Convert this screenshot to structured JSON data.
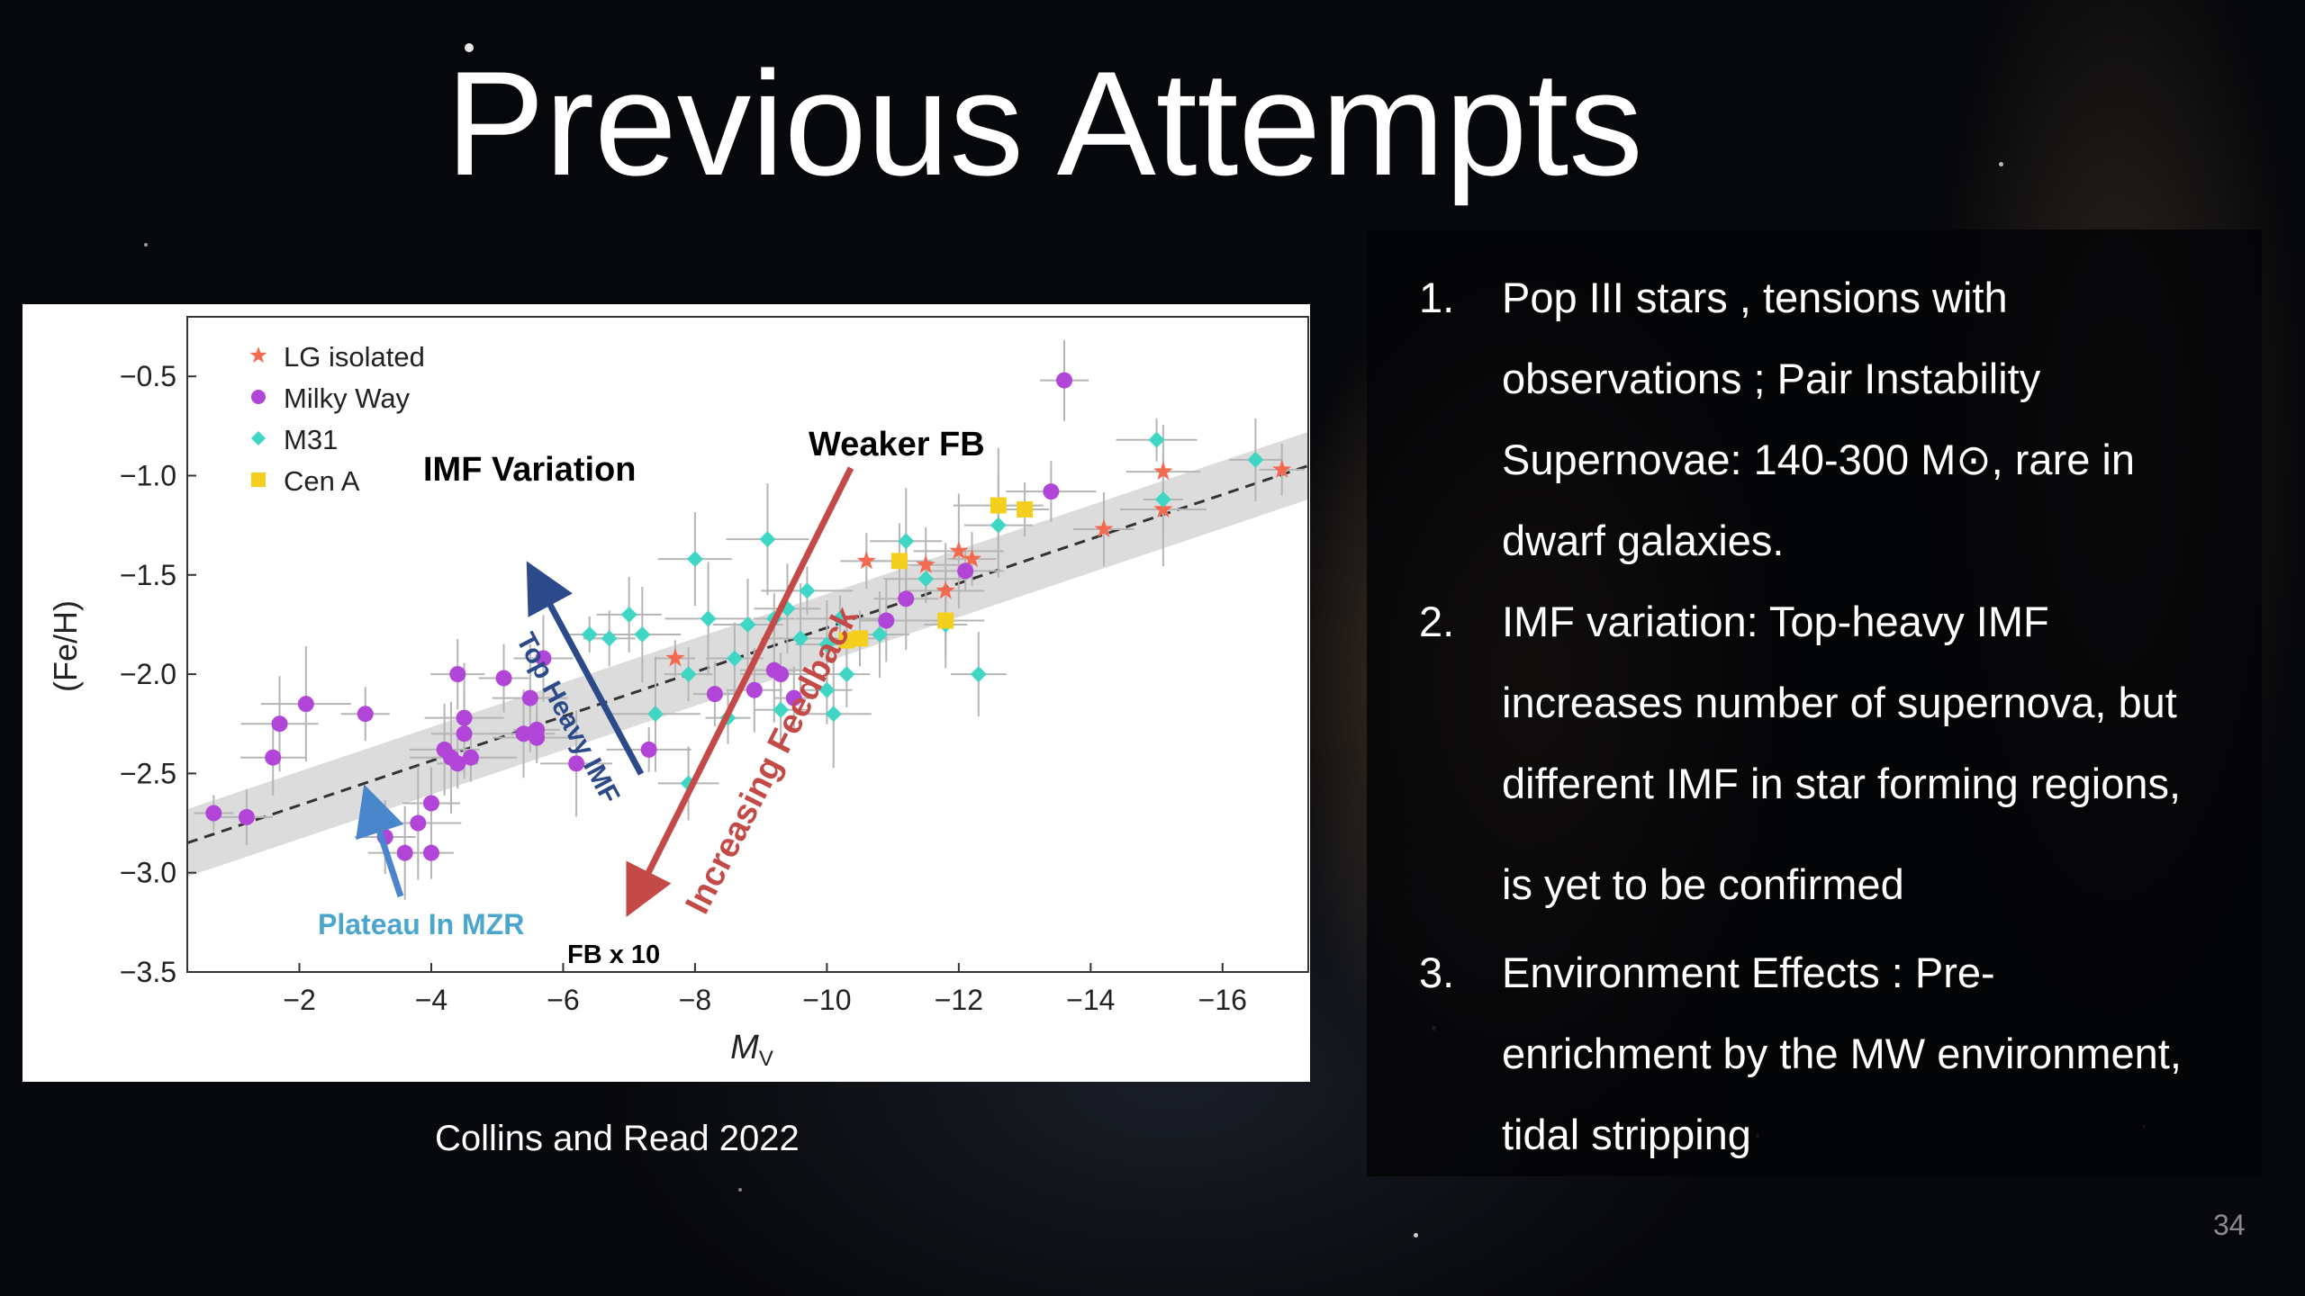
{
  "slide": {
    "title": "Previous Attempts",
    "caption": "Collins and Read 2022",
    "page_number": "34"
  },
  "list": [
    {
      "number": "1.",
      "lines": [
        "Pop III stars , tensions with",
        "observations ; Pair Instability",
        "Supernovae: 140-300 M⊙, rare in",
        "dwarf galaxies."
      ]
    },
    {
      "number": "2.",
      "lines": [
        "IMF variation: Top-heavy IMF",
        "increases number of supernova, but",
        "different IMF in star forming regions,",
        "is yet to be confirmed"
      ]
    },
    {
      "number": "3.",
      "lines": [
        "Environment Effects : Pre-",
        "enrichment by the MW environment,",
        "tidal stripping"
      ]
    }
  ],
  "chart_data": {
    "type": "scatter",
    "xlabel": "M",
    "xlabel_sub": "V",
    "ylabel": "(Fe/H)",
    "xlim": [
      -0.3,
      -17.3
    ],
    "ylim": [
      -3.5,
      -0.2
    ],
    "xticks": [
      -2,
      -4,
      -6,
      -8,
      -10,
      -12,
      -14,
      -16
    ],
    "xtick_labels": [
      "−2",
      "−4",
      "−6",
      "−8",
      "−10",
      "−12",
      "−14",
      "−16"
    ],
    "yticks": [
      -0.5,
      -1.0,
      -1.5,
      -2.0,
      -2.5,
      -3.0,
      -3.5
    ],
    "ytick_labels": [
      "−0.5",
      "−1.0",
      "−1.5",
      "−2.0",
      "−2.5",
      "−3.0",
      "−3.5"
    ],
    "legend_position": "top-left",
    "fit_line": {
      "x": [
        -0.3,
        -17.3
      ],
      "y": [
        -2.85,
        -0.95
      ],
      "band_halfwidth": 0.17
    },
    "series": [
      {
        "name": "LG isolated",
        "marker": "star",
        "color": "#f4694f",
        "points": [
          [
            -7.7,
            -1.92
          ],
          [
            -10.6,
            -1.43
          ],
          [
            -11.5,
            -1.45
          ],
          [
            -11.8,
            -1.58
          ],
          [
            -12.0,
            -1.38
          ],
          [
            -12.2,
            -1.42
          ],
          [
            -14.2,
            -1.27
          ],
          [
            -15.1,
            -0.98
          ],
          [
            -15.1,
            -1.17
          ],
          [
            -16.9,
            -0.97
          ]
        ]
      },
      {
        "name": "Milky Way",
        "marker": "circle",
        "color": "#b145d8",
        "points": [
          [
            -0.7,
            -2.7
          ],
          [
            -1.2,
            -2.72
          ],
          [
            -1.6,
            -2.42
          ],
          [
            -1.7,
            -2.25
          ],
          [
            -2.1,
            -2.15
          ],
          [
            -3.0,
            -2.2
          ],
          [
            -3.3,
            -2.82
          ],
          [
            -3.6,
            -2.9
          ],
          [
            -3.8,
            -2.75
          ],
          [
            -4.0,
            -2.9
          ],
          [
            -4.0,
            -2.65
          ],
          [
            -4.2,
            -2.38
          ],
          [
            -4.3,
            -2.42
          ],
          [
            -4.4,
            -2.45
          ],
          [
            -4.4,
            -2.0
          ],
          [
            -4.5,
            -2.3
          ],
          [
            -4.5,
            -2.22
          ],
          [
            -4.6,
            -2.42
          ],
          [
            -5.1,
            -2.02
          ],
          [
            -5.4,
            -2.3
          ],
          [
            -5.5,
            -2.12
          ],
          [
            -5.6,
            -2.32
          ],
          [
            -5.6,
            -2.28
          ],
          [
            -5.7,
            -1.92
          ],
          [
            -6.2,
            -2.45
          ],
          [
            -7.3,
            -2.38
          ],
          [
            -8.3,
            -2.1
          ],
          [
            -8.9,
            -2.08
          ],
          [
            -9.2,
            -1.98
          ],
          [
            -9.3,
            -2.0
          ],
          [
            -9.5,
            -2.12
          ],
          [
            -10.9,
            -1.73
          ],
          [
            -11.2,
            -1.62
          ],
          [
            -12.1,
            -1.48
          ],
          [
            -13.4,
            -1.08
          ],
          [
            -13.6,
            -0.52
          ]
        ]
      },
      {
        "name": "M31",
        "marker": "diamond",
        "color": "#3fd6c6",
        "points": [
          [
            -6.4,
            -1.8
          ],
          [
            -6.7,
            -1.82
          ],
          [
            -7.0,
            -1.7
          ],
          [
            -7.2,
            -1.8
          ],
          [
            -7.4,
            -2.2
          ],
          [
            -7.9,
            -2.0
          ],
          [
            -7.9,
            -2.55
          ],
          [
            -8.0,
            -1.42
          ],
          [
            -8.2,
            -1.72
          ],
          [
            -8.5,
            -2.22
          ],
          [
            -8.6,
            -1.92
          ],
          [
            -8.8,
            -1.75
          ],
          [
            -9.1,
            -1.32
          ],
          [
            -9.2,
            -1.72
          ],
          [
            -9.3,
            -2.18
          ],
          [
            -9.4,
            -1.67
          ],
          [
            -9.6,
            -1.82
          ],
          [
            -9.7,
            -1.58
          ],
          [
            -10.0,
            -2.08
          ],
          [
            -10.0,
            -1.85
          ],
          [
            -10.1,
            -2.2
          ],
          [
            -10.2,
            -1.72
          ],
          [
            -10.3,
            -2.0
          ],
          [
            -10.8,
            -1.8
          ],
          [
            -11.2,
            -1.33
          ],
          [
            -11.5,
            -1.52
          ],
          [
            -11.8,
            -1.75
          ],
          [
            -12.3,
            -2.0
          ],
          [
            -12.6,
            -1.25
          ],
          [
            -15.0,
            -0.82
          ],
          [
            -15.1,
            -1.12
          ],
          [
            -16.5,
            -0.92
          ]
        ]
      },
      {
        "name": "Cen A",
        "marker": "square",
        "color": "#f5cf1e",
        "points": [
          [
            -10.3,
            -1.83
          ],
          [
            -10.5,
            -1.82
          ],
          [
            -11.1,
            -1.43
          ],
          [
            -11.8,
            -1.73
          ],
          [
            -12.6,
            -1.15
          ],
          [
            -13.0,
            -1.17
          ]
        ]
      }
    ],
    "annotations": [
      {
        "text": "IMF Variation",
        "color": "#000000"
      },
      {
        "text": "Weaker FB",
        "color": "#000000"
      },
      {
        "text": "Top Heavy IMF",
        "color": "#2c4a8a"
      },
      {
        "text": "Increasing Feedback",
        "color": "#c44a48"
      },
      {
        "text": "Plateau In MZR",
        "color": "#4aa6cc"
      },
      {
        "text": "FB x 10",
        "color": "#000000"
      }
    ]
  }
}
